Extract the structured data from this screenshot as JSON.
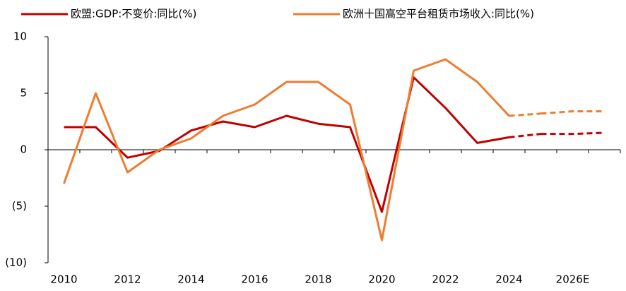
{
  "chart_data": {
    "type": "line",
    "categories": [
      "2010",
      null,
      "2012",
      null,
      "2014",
      null,
      "2016",
      null,
      "2018",
      null,
      "2020",
      null,
      "2022",
      null,
      "2024",
      null,
      "2026E",
      null
    ],
    "series": [
      {
        "name": "欧盟:GDP:不变价:同比(%)",
        "color": "#c00000",
        "dashed_from": 14,
        "values": [
          2.0,
          2.0,
          -0.7,
          -0.1,
          1.7,
          2.5,
          2.0,
          3.0,
          2.3,
          2.0,
          -5.5,
          6.4,
          3.7,
          0.6,
          1.1,
          1.4,
          1.4,
          1.5
        ]
      },
      {
        "name": "欧洲十国高空平台租赁市场收入:同比(%)",
        "color": "#ed7d31",
        "dashed_from": 14,
        "values": [
          -3,
          5,
          -2,
          0,
          1,
          3,
          4,
          6,
          6,
          4,
          -8,
          7,
          8,
          6,
          3,
          3.2,
          3.4,
          3.4
        ]
      }
    ],
    "ylim": [
      -10,
      10
    ],
    "yticks": [
      10,
      5,
      0,
      {
        "value": -5,
        "label": "(5)"
      },
      {
        "value": -10,
        "label": "(10)"
      }
    ],
    "negative_label_color": "#ff0000",
    "grid": false
  }
}
